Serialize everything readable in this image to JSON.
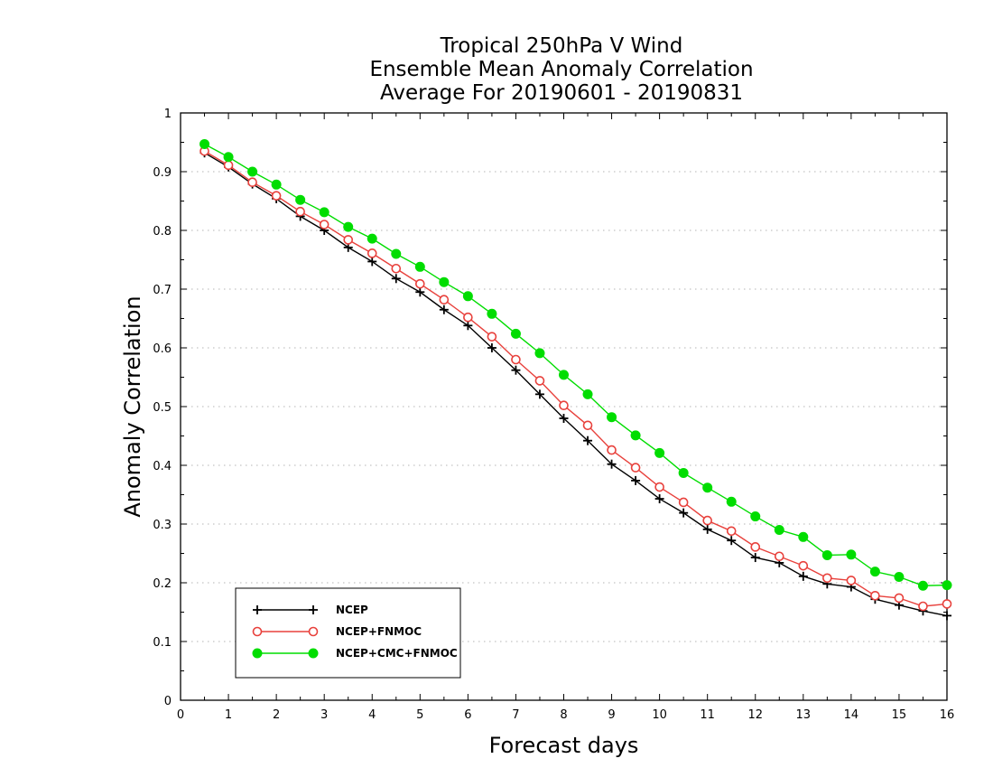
{
  "chart_data": {
    "type": "line",
    "title_lines": [
      "Tropical 250hPa V Wind",
      "Ensemble Mean Anomaly Correlation",
      "Average For 20190601 - 20190831"
    ],
    "xlabel": "Forecast days",
    "ylabel": "Anomaly Correlation",
    "xlim": [
      0,
      16
    ],
    "ylim": [
      0,
      1
    ],
    "xticks": [
      "0",
      "1",
      "2",
      "3",
      "4",
      "5",
      "6",
      "7",
      "8",
      "9",
      "10",
      "11",
      "12",
      "13",
      "14",
      "15",
      "16"
    ],
    "yticks": [
      "0",
      "0.1",
      "0.2",
      "0.3",
      "0.4",
      "0.5",
      "0.6",
      "0.7",
      "0.8",
      "0.9",
      "1"
    ],
    "grid": "horizontal dotted",
    "legend_position": "bottom-left",
    "x": [
      0.5,
      1,
      1.5,
      2,
      2.5,
      3,
      3.5,
      4,
      4.5,
      5,
      5.5,
      6,
      6.5,
      7,
      7.5,
      8,
      8.5,
      9,
      9.5,
      10,
      10.5,
      11,
      11.5,
      12,
      12.5,
      13,
      13.5,
      14,
      14.5,
      15,
      15.5,
      16
    ],
    "series": [
      {
        "name": "NCEP",
        "marker": "plus",
        "color": "#000000",
        "values": [
          0.932,
          0.908,
          0.879,
          0.854,
          0.824,
          0.8,
          0.771,
          0.747,
          0.718,
          0.695,
          0.665,
          0.638,
          0.6,
          0.562,
          0.521,
          0.48,
          0.442,
          0.402,
          0.374,
          0.343,
          0.319,
          0.291,
          0.272,
          0.243,
          0.234,
          0.211,
          0.198,
          0.193,
          0.172,
          0.162,
          0.152,
          0.144
        ]
      },
      {
        "name": "NCEP+FNMOC",
        "marker": "open-circle",
        "color": "#e8413c",
        "values": [
          0.935,
          0.911,
          0.882,
          0.859,
          0.832,
          0.81,
          0.784,
          0.761,
          0.735,
          0.709,
          0.682,
          0.652,
          0.619,
          0.58,
          0.544,
          0.502,
          0.468,
          0.426,
          0.396,
          0.363,
          0.337,
          0.306,
          0.288,
          0.261,
          0.245,
          0.229,
          0.208,
          0.204,
          0.178,
          0.174,
          0.16,
          0.164
        ]
      },
      {
        "name": "NCEP+CMC+FNMOC",
        "marker": "filled-circle",
        "color": "#00dd00",
        "values": [
          0.947,
          0.925,
          0.9,
          0.878,
          0.852,
          0.831,
          0.806,
          0.786,
          0.76,
          0.738,
          0.712,
          0.688,
          0.658,
          0.624,
          0.591,
          0.554,
          0.521,
          0.482,
          0.451,
          0.421,
          0.387,
          0.362,
          0.338,
          0.313,
          0.29,
          0.278,
          0.247,
          0.248,
          0.219,
          0.21,
          0.195,
          0.196
        ]
      }
    ]
  }
}
